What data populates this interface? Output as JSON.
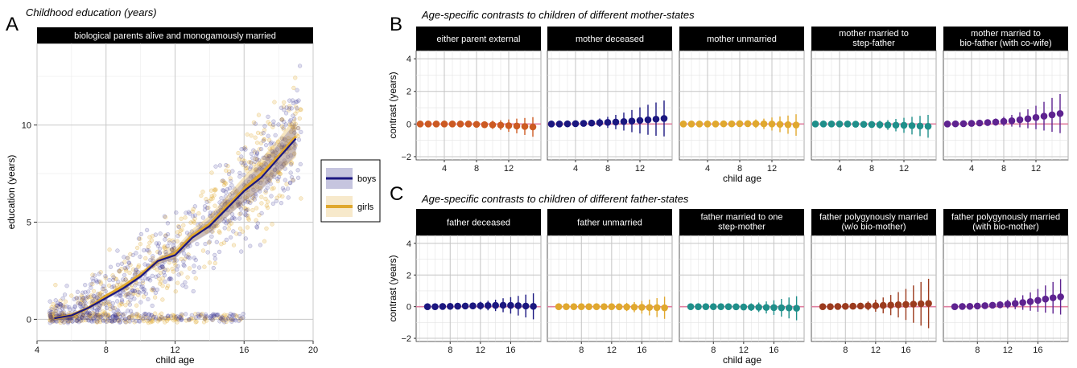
{
  "panel_labels": {
    "a": "A",
    "b": "B",
    "c": "C"
  },
  "legend": {
    "items": [
      "boys",
      "girls"
    ],
    "colors": [
      "#1b1780",
      "#e0a82e"
    ]
  },
  "chart_data": [
    {
      "type": "scatter",
      "title": "Childhood education (years)",
      "strip": "biological parents alive and monogamously married",
      "xlabel": "child age",
      "ylabel": "education (years)",
      "xlim": [
        4,
        20
      ],
      "ylim": [
        -1.1,
        14.2
      ],
      "xticks": [
        4,
        8,
        12,
        16,
        20
      ],
      "yticks": [
        0,
        5,
        10
      ],
      "grid": true,
      "legend_position": "right",
      "series": [
        {
          "name": "boys",
          "x": [
            5,
            6,
            7,
            8,
            9,
            10,
            11,
            12,
            13,
            14,
            15,
            16,
            17,
            18,
            19
          ],
          "y": [
            0.05,
            0.2,
            0.6,
            1.1,
            1.6,
            2.2,
            3.0,
            3.3,
            4.2,
            4.8,
            5.7,
            6.6,
            7.3,
            8.3,
            9.3
          ]
        },
        {
          "name": "girls",
          "x": [
            5,
            6,
            7,
            8,
            9,
            10,
            11,
            12,
            13,
            14,
            15,
            16,
            17,
            18,
            19
          ],
          "y": [
            0.05,
            0.2,
            0.6,
            1.2,
            1.7,
            2.3,
            3.0,
            3.4,
            4.3,
            4.9,
            5.8,
            6.7,
            7.5,
            8.4,
            9.4
          ]
        }
      ]
    },
    {
      "type": "scatter",
      "title": "Age-specific contrasts to children of different mother-states",
      "xlabel": "child age",
      "ylabel": "contrast (years)",
      "xlim": [
        0.5,
        16
      ],
      "ylim": [
        -2.2,
        4.5
      ],
      "xticks": [
        4,
        8,
        12
      ],
      "yticks": [
        -2,
        0,
        2,
        4
      ],
      "x": [
        1,
        2,
        3,
        4,
        5,
        6,
        7,
        8,
        9,
        10,
        11,
        12,
        13,
        14,
        15
      ],
      "facets": [
        {
          "label": "either parent external",
          "color": "#cc5a22",
          "y": [
            0,
            0,
            0,
            0,
            0,
            0,
            0,
            -0.02,
            -0.04,
            -0.05,
            -0.07,
            -0.1,
            -0.12,
            -0.15,
            -0.18
          ],
          "err": [
            0.05,
            0.06,
            0.07,
            0.08,
            0.1,
            0.12,
            0.14,
            0.16,
            0.2,
            0.25,
            0.3,
            0.38,
            0.45,
            0.52,
            0.6
          ]
        },
        {
          "label": "mother deceased",
          "color": "#1b1780",
          "y": [
            0,
            0,
            0.01,
            0.02,
            0.04,
            0.06,
            0.08,
            0.1,
            0.12,
            0.15,
            0.18,
            0.22,
            0.26,
            0.3,
            0.34
          ],
          "err": [
            0.05,
            0.06,
            0.08,
            0.1,
            0.14,
            0.2,
            0.26,
            0.34,
            0.44,
            0.55,
            0.68,
            0.8,
            0.92,
            1.02,
            1.1
          ]
        },
        {
          "label": "mother unmarried",
          "color": "#e0a82e",
          "y": [
            0,
            0,
            0,
            0,
            0,
            0.01,
            0.01,
            0.02,
            0.02,
            0.02,
            0.01,
            0,
            -0.02,
            -0.04,
            -0.06
          ],
          "err": [
            0.05,
            0.05,
            0.06,
            0.07,
            0.08,
            0.1,
            0.12,
            0.16,
            0.2,
            0.26,
            0.32,
            0.4,
            0.48,
            0.56,
            0.66
          ]
        },
        {
          "label": "mother married to step-father",
          "color": "#1f8f8a",
          "y": [
            0,
            0,
            0,
            0,
            0,
            -0.01,
            -0.02,
            -0.03,
            -0.04,
            -0.06,
            -0.07,
            -0.08,
            -0.1,
            -0.12,
            -0.14
          ],
          "err": [
            0.05,
            0.06,
            0.07,
            0.08,
            0.1,
            0.12,
            0.15,
            0.19,
            0.24,
            0.3,
            0.38,
            0.46,
            0.54,
            0.62,
            0.7
          ]
        },
        {
          "label": "mother married to bio-father (with co-wife)",
          "color": "#5e2390",
          "y": [
            0,
            0.01,
            0.02,
            0.04,
            0.06,
            0.09,
            0.12,
            0.16,
            0.2,
            0.26,
            0.32,
            0.4,
            0.48,
            0.56,
            0.64
          ],
          "err": [
            0.05,
            0.06,
            0.08,
            0.1,
            0.13,
            0.17,
            0.22,
            0.28,
            0.36,
            0.46,
            0.58,
            0.72,
            0.88,
            1.04,
            1.2
          ]
        }
      ]
    },
    {
      "type": "scatter",
      "title": "Age-specific contrasts to children of different father-states",
      "xlabel": "child age",
      "ylabel": "contrast (years)",
      "xlim": [
        3.5,
        20
      ],
      "ylim": [
        -2.2,
        4.5
      ],
      "xticks": [
        8,
        12,
        16
      ],
      "yticks": [
        -2,
        0,
        2,
        4
      ],
      "x": [
        5,
        6,
        7,
        8,
        9,
        10,
        11,
        12,
        13,
        14,
        15,
        16,
        17,
        18,
        19
      ],
      "facets": [
        {
          "label": "father deceased",
          "color": "#1b1780",
          "y": [
            0,
            0,
            0.01,
            0.02,
            0.03,
            0.04,
            0.05,
            0.06,
            0.07,
            0.08,
            0.09,
            0.08,
            0.06,
            0.04,
            0.02
          ],
          "err": [
            0.05,
            0.06,
            0.08,
            0.1,
            0.13,
            0.16,
            0.2,
            0.25,
            0.3,
            0.36,
            0.44,
            0.52,
            0.62,
            0.72,
            0.82
          ]
        },
        {
          "label": "father unmarried",
          "color": "#e0a82e",
          "y": [
            0,
            0,
            0,
            0,
            0,
            0,
            0,
            0,
            -0.01,
            -0.02,
            -0.03,
            -0.04,
            -0.05,
            -0.06,
            -0.07
          ],
          "err": [
            0.05,
            0.05,
            0.06,
            0.07,
            0.08,
            0.1,
            0.12,
            0.16,
            0.2,
            0.26,
            0.32,
            0.4,
            0.5,
            0.6,
            0.7
          ]
        },
        {
          "label": "father married to one step-mother",
          "color": "#1f8f8a",
          "y": [
            0,
            0,
            0,
            0,
            0,
            0,
            -0.01,
            -0.02,
            -0.03,
            -0.04,
            -0.05,
            -0.06,
            -0.07,
            -0.08,
            -0.1
          ],
          "err": [
            0.05,
            0.06,
            0.07,
            0.08,
            0.1,
            0.12,
            0.15,
            0.19,
            0.24,
            0.3,
            0.38,
            0.46,
            0.56,
            0.66,
            0.76
          ]
        },
        {
          "label": "father polygynously married (w/o bio-mother)",
          "color": "#9b3b1e",
          "y": [
            0,
            0,
            0.01,
            0.02,
            0.03,
            0.04,
            0.05,
            0.06,
            0.08,
            0.1,
            0.12,
            0.14,
            0.16,
            0.18,
            0.2
          ],
          "err": [
            0.05,
            0.06,
            0.08,
            0.1,
            0.14,
            0.2,
            0.28,
            0.38,
            0.5,
            0.64,
            0.8,
            0.98,
            1.18,
            1.38,
            1.56
          ]
        },
        {
          "label": "father polygynously married (with bio-mother)",
          "color": "#5e2390",
          "y": [
            0,
            0.01,
            0.02,
            0.04,
            0.06,
            0.09,
            0.12,
            0.16,
            0.2,
            0.26,
            0.32,
            0.4,
            0.48,
            0.56,
            0.62
          ],
          "err": [
            0.05,
            0.06,
            0.08,
            0.1,
            0.13,
            0.17,
            0.22,
            0.28,
            0.36,
            0.46,
            0.58,
            0.72,
            0.86,
            1.0,
            1.12
          ]
        }
      ]
    }
  ]
}
